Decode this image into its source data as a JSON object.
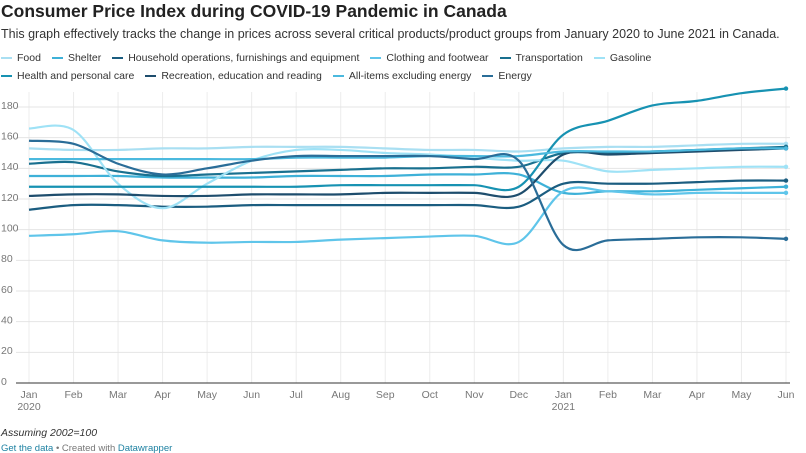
{
  "chart_data": {
    "type": "line",
    "title": "Consumer Price Index during COVID-19 Pandemic in Canada",
    "subtitle": "This graph effectively tracks the change in prices across several critical products/product groups from January 2020 to June 2021 in Canada.",
    "note": "Assuming 2002=100",
    "footer": {
      "link": "Get the data",
      "separator": "• Created with",
      "credit": "Datawrapper"
    },
    "categories": [
      "Jan 2020",
      "Feb",
      "Mar",
      "Apr",
      "May",
      "Jun",
      "Jul",
      "Aug",
      "Sep",
      "Oct",
      "Nov",
      "Dec",
      "Jan 2021",
      "Feb",
      "Mar",
      "Apr",
      "May",
      "Jun"
    ],
    "ylim": [
      0,
      195
    ],
    "yticks": [
      0,
      20,
      40,
      60,
      80,
      100,
      120,
      140,
      160,
      180
    ],
    "grid": true,
    "series": [
      {
        "name": "Food",
        "color": "#a9dff2",
        "values": [
          153,
          152,
          152,
          153,
          153,
          154,
          154,
          154,
          153,
          152,
          152,
          151,
          153,
          154,
          154,
          155,
          156,
          156
        ]
      },
      {
        "name": "Shelter",
        "color": "#3eb1d8",
        "values": [
          135,
          135,
          135,
          134,
          134,
          134,
          135,
          135,
          135,
          136,
          136,
          136,
          124,
          125,
          125,
          126,
          127,
          128
        ]
      },
      {
        "name": "Household operations, furnishings and equipment",
        "color": "#1b5d80",
        "values": [
          113,
          116,
          116,
          115,
          115,
          116,
          116,
          116,
          116,
          116,
          116,
          115,
          130,
          130,
          130,
          131,
          132,
          132
        ]
      },
      {
        "name": "Clothing and footwear",
        "color": "#5fc5ea",
        "values": [
          96,
          97,
          99,
          93,
          91.5,
          92,
          92,
          93.5,
          94.5,
          95.5,
          96,
          92,
          125,
          125,
          123,
          124,
          124,
          124
        ]
      },
      {
        "name": "Transportation",
        "color": "#19708f",
        "values": [
          143,
          144,
          138,
          135,
          136,
          137,
          138,
          139,
          140,
          140,
          141,
          141,
          150,
          150,
          151,
          152,
          153,
          154
        ]
      },
      {
        "name": "Gasoline",
        "color": "#9fe2f6",
        "values": [
          166,
          165,
          130,
          114,
          130,
          145,
          152,
          152,
          150,
          149,
          147,
          145,
          145,
          138,
          139,
          140,
          141,
          141
        ]
      },
      {
        "name": "Health and personal care",
        "color": "#1792b2",
        "values": [
          128,
          128,
          128,
          128,
          128,
          128,
          128,
          129,
          129,
          129,
          129,
          128,
          162,
          171,
          181,
          184,
          189,
          192
        ]
      },
      {
        "name": "Recreation, education and reading",
        "color": "#1e4d6d",
        "values": [
          122,
          123,
          123,
          122,
          122,
          123,
          123,
          123,
          124,
          124,
          124,
          123,
          149,
          149,
          150,
          151,
          152,
          153
        ]
      },
      {
        "name": "All-items excluding energy",
        "color": "#4bb9de",
        "values": [
          146,
          146,
          146,
          146,
          146,
          146,
          147,
          147,
          147,
          148,
          148,
          148,
          151,
          151,
          151,
          152,
          153,
          153
        ]
      },
      {
        "name": "Energy",
        "color": "#2a6d98",
        "values": [
          158,
          156,
          143,
          136,
          140,
          145,
          148,
          148,
          148,
          148,
          146,
          145,
          90,
          93,
          94,
          95,
          95,
          94
        ]
      }
    ]
  }
}
